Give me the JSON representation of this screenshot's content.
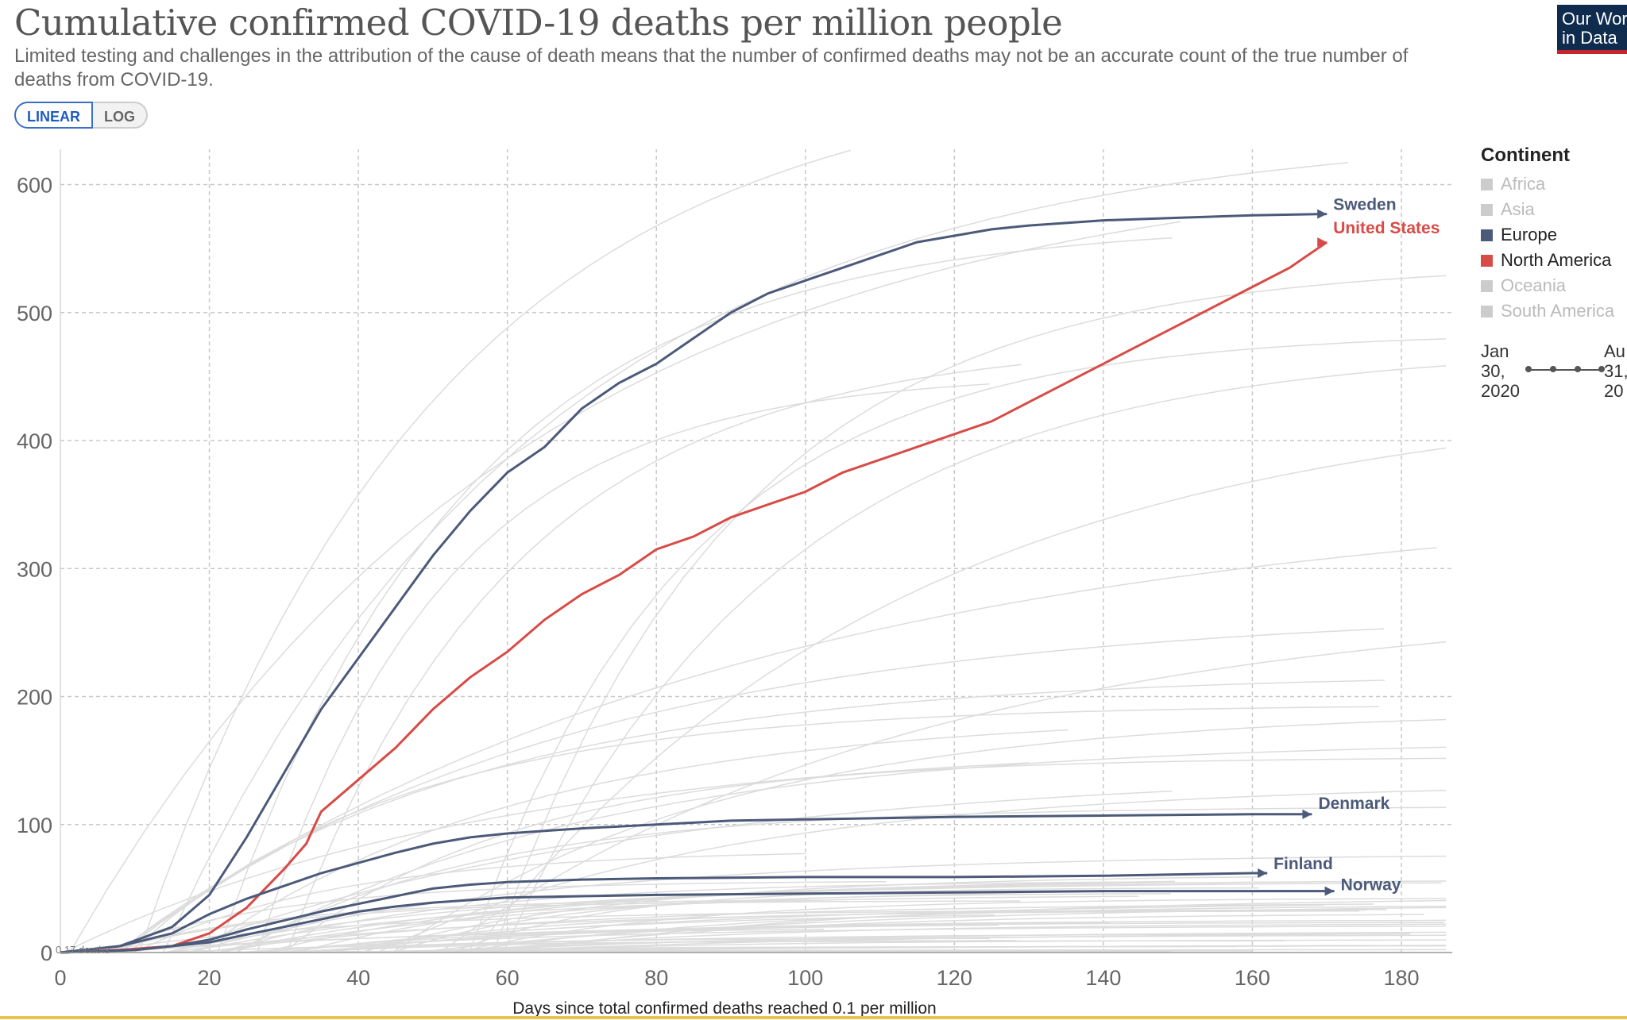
{
  "header": {
    "title": "Cumulative confirmed COVID-19 deaths per million people",
    "subtitle": "Limited testing and challenges in the attribution of the cause of death means that the number of confirmed deaths may not be an accurate count of the true number of deaths from COVID-19.",
    "logo_line1": "Our Wor",
    "logo_line2": "in Data"
  },
  "controls": {
    "linear_label": "LINEAR",
    "log_label": "LOG",
    "selected": "LINEAR"
  },
  "legend": {
    "title": "Continent",
    "items": [
      {
        "label": "Africa",
        "color": "#cccccc",
        "active": false
      },
      {
        "label": "Asia",
        "color": "#cccccc",
        "active": false
      },
      {
        "label": "Europe",
        "color": "#4c5a7a",
        "active": true
      },
      {
        "label": "North America",
        "color": "#d84b46",
        "active": true
      },
      {
        "label": "Oceania",
        "color": "#cccccc",
        "active": false
      },
      {
        "label": "South America",
        "color": "#cccccc",
        "active": false
      }
    ]
  },
  "timeline": {
    "start": "Jan\n30,\n2020",
    "end": "Au\n31,\n20"
  },
  "chart_data": {
    "type": "line",
    "title": "Cumulative confirmed COVID-19 deaths per million people",
    "xlabel": "Days since total confirmed deaths reached 0.1 per million",
    "ylabel": "",
    "xlim": [
      0,
      188
    ],
    "ylim": [
      0,
      640
    ],
    "xticks": [
      0,
      20,
      40,
      60,
      80,
      100,
      120,
      140,
      160,
      180
    ],
    "yticks": [
      0,
      100,
      200,
      300,
      400,
      500,
      600
    ],
    "grid": true,
    "log_scale": false,
    "annotation": "0.17 deaths",
    "series": [
      {
        "name": "Sweden",
        "color": "#4c5a7a",
        "x": [
          0,
          8,
          15,
          20,
          25,
          30,
          35,
          40,
          45,
          50,
          55,
          60,
          65,
          70,
          75,
          80,
          85,
          90,
          95,
          100,
          105,
          110,
          115,
          120,
          125,
          130,
          140,
          150,
          160,
          170
        ],
        "y": [
          0,
          5,
          20,
          45,
          90,
          140,
          190,
          230,
          270,
          310,
          345,
          375,
          395,
          425,
          445,
          460,
          480,
          500,
          515,
          525,
          535,
          545,
          555,
          560,
          565,
          568,
          572,
          574,
          576,
          577
        ]
      },
      {
        "name": "United States",
        "color": "#d84b46",
        "x": [
          0,
          8,
          15,
          20,
          25,
          30,
          33,
          35,
          40,
          45,
          50,
          55,
          60,
          65,
          70,
          75,
          80,
          85,
          90,
          95,
          100,
          105,
          110,
          115,
          120,
          125,
          130,
          135,
          140,
          145,
          150,
          155,
          160,
          165,
          170
        ],
        "y": [
          0,
          2,
          5,
          15,
          35,
          65,
          85,
          110,
          135,
          160,
          190,
          215,
          235,
          260,
          280,
          295,
          315,
          325,
          340,
          350,
          360,
          375,
          385,
          395,
          405,
          415,
          430,
          445,
          460,
          475,
          490,
          505,
          520,
          535,
          555
        ]
      },
      {
        "name": "Denmark",
        "color": "#4c5a7a",
        "x": [
          0,
          8,
          15,
          20,
          25,
          30,
          35,
          40,
          45,
          50,
          55,
          60,
          65,
          70,
          80,
          90,
          100,
          120,
          140,
          160,
          168
        ],
        "y": [
          0,
          5,
          15,
          30,
          42,
          52,
          62,
          70,
          78,
          85,
          90,
          93,
          95,
          97,
          100,
          103,
          104,
          106,
          107,
          108,
          108
        ]
      },
      {
        "name": "Finland",
        "color": "#4c5a7a",
        "x": [
          0,
          10,
          15,
          20,
          25,
          30,
          35,
          40,
          45,
          50,
          55,
          60,
          70,
          80,
          100,
          120,
          140,
          160,
          162
        ],
        "y": [
          0,
          2,
          5,
          10,
          18,
          25,
          32,
          38,
          44,
          50,
          53,
          55,
          57,
          58,
          59,
          59,
          60,
          62,
          62
        ]
      },
      {
        "name": "Norway",
        "color": "#4c5a7a",
        "x": [
          0,
          10,
          20,
          25,
          30,
          35,
          40,
          45,
          50,
          55,
          60,
          70,
          80,
          100,
          120,
          140,
          160,
          171
        ],
        "y": [
          0,
          2,
          8,
          14,
          20,
          26,
          32,
          36,
          39,
          41,
          43,
          44,
          45,
          46,
          47,
          48,
          48,
          48
        ]
      }
    ],
    "background_series_count": 70
  }
}
